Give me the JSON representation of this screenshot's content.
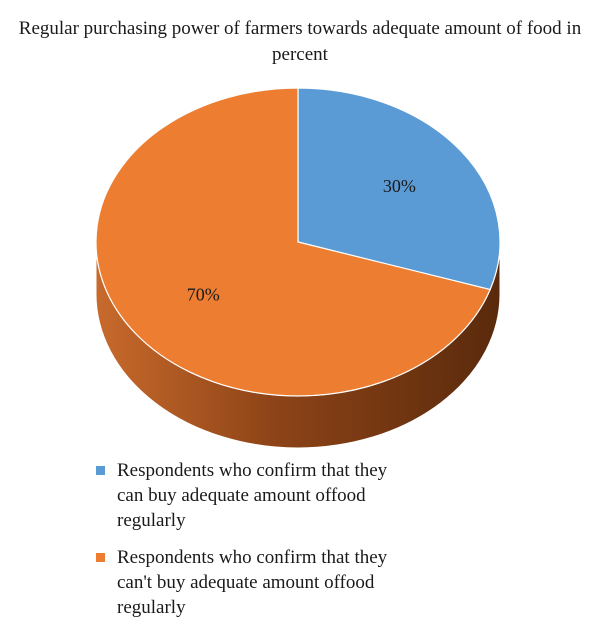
{
  "chart_data": {
    "type": "pie",
    "title": "Regular purchasing power of farmers towards adequate amount of food in percent",
    "categories": [
      "Respondents who confirm that they can buy adequate amount offood regularly",
      "Respondents who confirm that they can't buy adequate amount offood regularly"
    ],
    "values": [
      30,
      70
    ],
    "data_labels": [
      "30%",
      "70%"
    ],
    "colors": [
      "#5b9bd5",
      "#ed7d31"
    ],
    "side_color": "#a0501c",
    "legend_placement": "bottom",
    "style": "3d"
  }
}
